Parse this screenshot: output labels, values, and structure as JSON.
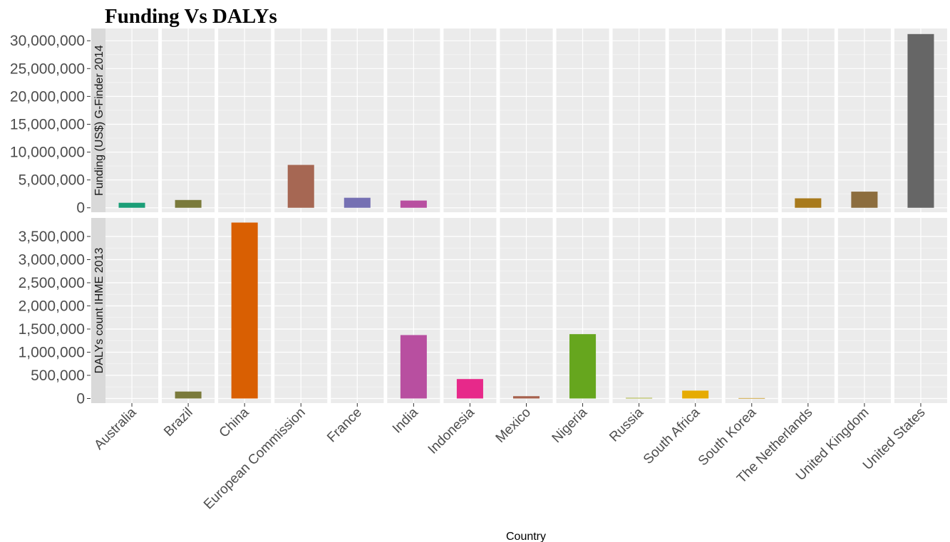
{
  "chart_data": {
    "type": "bar",
    "title": "Funding Vs DALYs",
    "xlabel": "Country",
    "categories": [
      "Australia",
      "Brazil",
      "China",
      "European Commission",
      "France",
      "India",
      "Indonesia",
      "Mexico",
      "Nigeria",
      "Russia",
      "South Africa",
      "South Korea",
      "The Netherlands",
      "United Kingdom",
      "United States"
    ],
    "colors": [
      "#1b9e77",
      "#7a7a3b",
      "#d95f02",
      "#a66753",
      "#7570b3",
      "#b84fa0",
      "#e7298a",
      "#a6614d",
      "#66a61e",
      "#a9b23c",
      "#e6ab02",
      "#d2ac4b",
      "#a87a1c",
      "#8c6d3e",
      "#666666"
    ],
    "facets": [
      {
        "strip_label": "Funding (US$) G-Finder 2014",
        "ylim": [
          -800000,
          32200000
        ],
        "yticks": [
          0,
          5000000,
          10000000,
          15000000,
          20000000,
          25000000,
          30000000
        ],
        "ytick_labels": [
          "0",
          "5,000,000",
          "10,000,000",
          "15,000,000",
          "20,000,000",
          "25,000,000",
          "30,000,000"
        ],
        "values": [
          900000,
          1400000,
          null,
          7700000,
          1800000,
          1300000,
          null,
          null,
          null,
          null,
          null,
          null,
          1700000,
          2900000,
          31200000
        ]
      },
      {
        "strip_label": "DALYs count IHME 2013",
        "ylim": [
          -100000,
          3900000
        ],
        "yticks": [
          0,
          500000,
          1000000,
          1500000,
          2000000,
          2500000,
          3000000,
          3500000
        ],
        "ytick_labels": [
          "0",
          "500,000",
          "1,000,000",
          "1,500,000",
          "2,000,000",
          "2,500,000",
          "3,000,000",
          "3,500,000"
        ],
        "values": [
          null,
          150000,
          3800000,
          null,
          null,
          1370000,
          420000,
          50000,
          1390000,
          15000,
          170000,
          10000,
          null,
          null,
          null
        ]
      }
    ]
  }
}
